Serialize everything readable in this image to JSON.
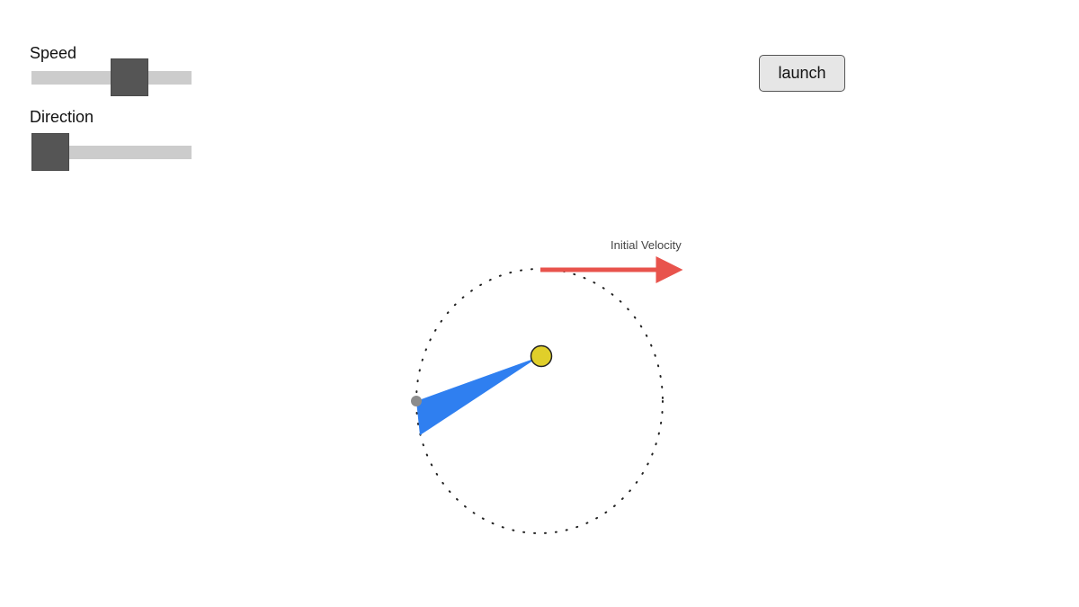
{
  "controls": {
    "speed": {
      "label": "Speed",
      "value_fraction": 0.5
    },
    "direction": {
      "label": "Direction",
      "value_fraction": 0.0
    }
  },
  "launch_button": {
    "label": "launch"
  },
  "scene": {
    "velocity_label": "Initial Velocity",
    "colors": {
      "sun": "#e0cf2a",
      "planet": "#8c8c8c",
      "swept_area": "#2f7ff0",
      "velocity_arrow": "#e8534c",
      "orbit_path": "#222222",
      "slider_thumb": "#555555",
      "slider_track": "#cccccc"
    },
    "icons": [
      "sun-marker",
      "planet-marker",
      "velocity-arrow-icon"
    ]
  }
}
